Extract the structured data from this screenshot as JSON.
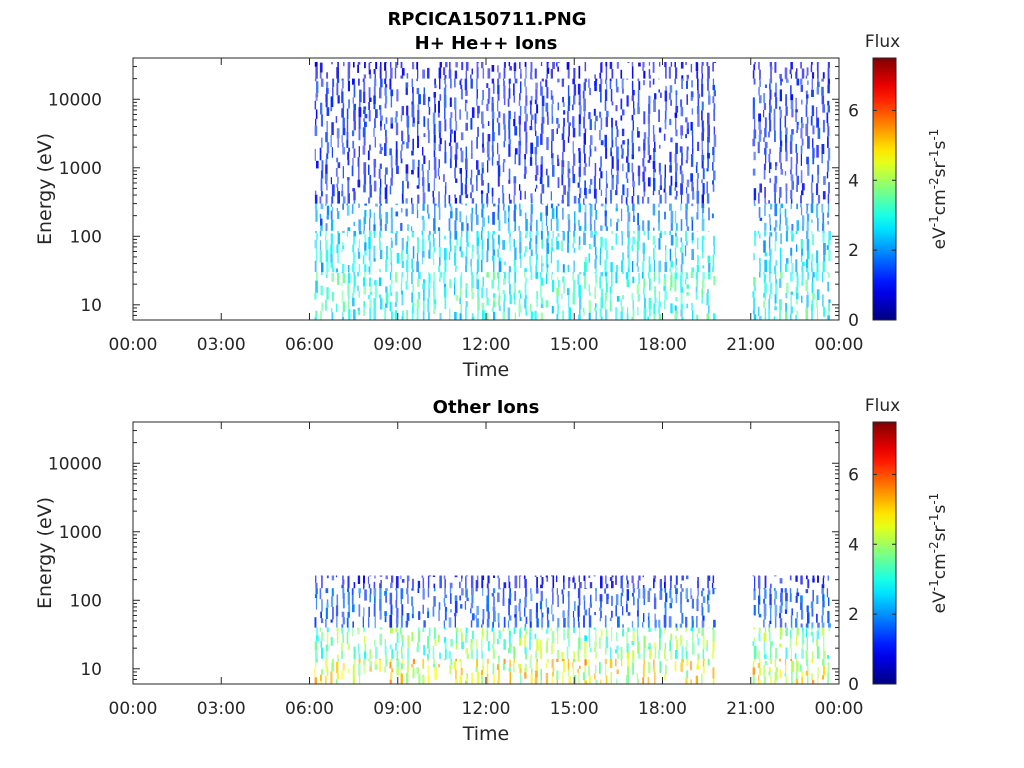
{
  "figure_title": "RPCICA150711.PNG",
  "chart_data": [
    {
      "type": "heatmap",
      "title": "H+ He++ Ions",
      "xlabel": "Time",
      "ylabel": "Energy (eV)",
      "x_ticks": [
        "00:00",
        "03:00",
        "06:00",
        "09:00",
        "12:00",
        "15:00",
        "18:00",
        "21:00",
        "00:00"
      ],
      "x_range_hours": [
        0,
        24
      ],
      "y_scale": "log",
      "y_range": [
        6,
        40000
      ],
      "y_ticks": [
        10,
        100,
        1000,
        10000
      ],
      "y_tick_labels": [
        "10",
        "100",
        "1000",
        "10000"
      ],
      "data_intervals_hours": [
        [
          6.1,
          19.8
        ],
        [
          21.0,
          23.7
        ]
      ],
      "sweep_count": 90,
      "energy_bands": [
        {
          "e_min": 6,
          "e_max": 30,
          "flux": 3.0
        },
        {
          "e_min": 30,
          "e_max": 120,
          "flux": 2.6
        },
        {
          "e_min": 120,
          "e_max": 300,
          "flux": 1.9
        },
        {
          "e_min": 300,
          "e_max": 20000,
          "flux": 1.2
        },
        {
          "e_min": 20000,
          "e_max": 35000,
          "flux": 0.8
        }
      ],
      "colorbar": {
        "label": "Flux",
        "units": "eV-1cm-2sr-1s-1",
        "range": [
          0,
          7.5
        ],
        "ticks": [
          0,
          2,
          4,
          6
        ],
        "tick_labels": [
          "0",
          "2",
          "4",
          "6"
        ],
        "colormap": "jet"
      }
    },
    {
      "type": "heatmap",
      "title": "Other Ions",
      "xlabel": "Time",
      "ylabel": "Energy (eV)",
      "x_ticks": [
        "00:00",
        "03:00",
        "06:00",
        "09:00",
        "12:00",
        "15:00",
        "18:00",
        "21:00",
        "00:00"
      ],
      "x_range_hours": [
        0,
        24
      ],
      "y_scale": "log",
      "y_range": [
        6,
        40000
      ],
      "y_ticks": [
        10,
        100,
        1000,
        10000
      ],
      "y_tick_labels": [
        "10",
        "100",
        "1000",
        "10000"
      ],
      "data_intervals_hours": [
        [
          6.1,
          19.8
        ],
        [
          21.0,
          23.7
        ]
      ],
      "sweep_count": 90,
      "energy_bands": [
        {
          "e_min": 6,
          "e_max": 14,
          "flux": 4.5
        },
        {
          "e_min": 14,
          "e_max": 40,
          "flux": 3.6
        },
        {
          "e_min": 40,
          "e_max": 150,
          "flux": 1.5
        },
        {
          "e_min": 150,
          "e_max": 230,
          "flux": 1.0
        }
      ],
      "colorbar": {
        "label": "Flux",
        "units": "eV-1cm-2sr-1s-1",
        "range": [
          0,
          7.5
        ],
        "ticks": [
          0,
          2,
          4,
          6
        ],
        "tick_labels": [
          "0",
          "2",
          "4",
          "6"
        ],
        "colormap": "jet"
      }
    }
  ]
}
